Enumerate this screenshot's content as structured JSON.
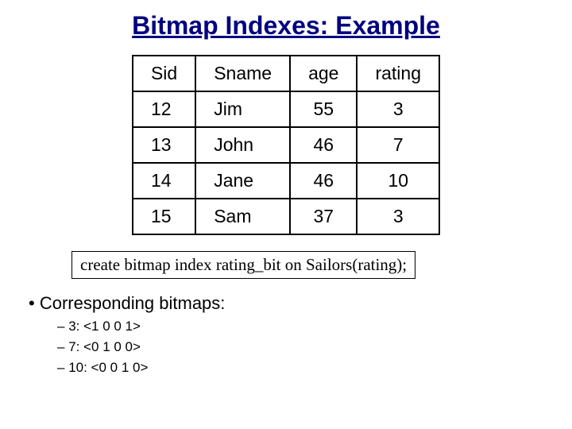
{
  "title": "Bitmap Indexes: Example",
  "table": {
    "columns": [
      "Sid",
      "Sname",
      "age",
      "rating"
    ],
    "rows": [
      [
        "12",
        "Jim",
        "55",
        "3"
      ],
      [
        "13",
        "John",
        "46",
        "7"
      ],
      [
        "14",
        "Jane",
        "46",
        "10"
      ],
      [
        "15",
        "Sam",
        "37",
        "3"
      ]
    ],
    "border_color": "#000000",
    "header_fontsize": 23,
    "cell_fontsize": 23
  },
  "sql": "create bitmap index rating_bit on Sailors(rating);",
  "bullet": "Corresponding bitmaps:",
  "bitmaps": [
    " 3: <1 0 0 1>",
    " 7: <0 1 0 0>",
    "10: <0 0 1 0>"
  ],
  "colors": {
    "title": "#000080",
    "text": "#000000",
    "background": "#ffffff"
  }
}
